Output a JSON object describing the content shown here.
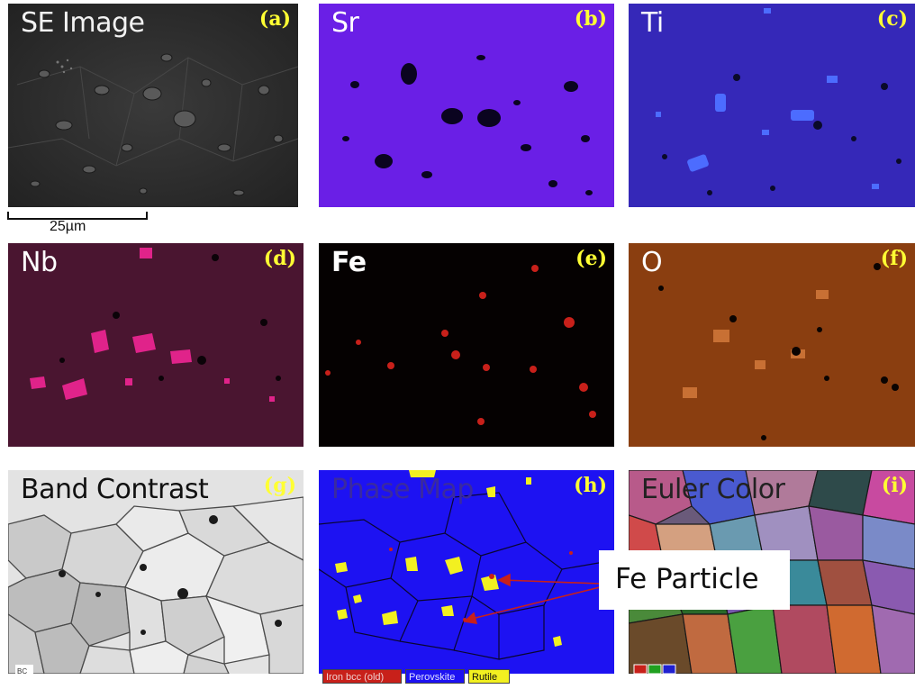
{
  "panels": {
    "a": {
      "title": "SE Image",
      "label": "(a)"
    },
    "b": {
      "title": "Sr",
      "label": "(b)"
    },
    "c": {
      "title": "Ti",
      "label": "(c)"
    },
    "d": {
      "title": "Nb",
      "label": "(d)"
    },
    "e": {
      "title": "Fe",
      "label": "(e)"
    },
    "f": {
      "title": "O",
      "label": "(f)"
    },
    "g": {
      "title": "Band Contrast",
      "label": "(g)",
      "corner": "BC"
    },
    "h": {
      "title": "Phase Map",
      "label": "(h)"
    },
    "i": {
      "title": "Euler Color",
      "label": "(i)"
    }
  },
  "scale_bar": "25µm",
  "callout": "Fe Particle",
  "legend": [
    "Iron bcc (old)",
    "Perovskite",
    "Rutile"
  ],
  "colors": {
    "sr_bg": "#6a1fe6",
    "ti_bg": "#3528b8",
    "nb_bg": "#4a1530",
    "fe_bg": "#050101",
    "o_bg": "#8a3e10",
    "phase_bg": "#1d12f2",
    "rutile": "#f2f020",
    "iron": "#c8201a",
    "label_yellow": "#ffff33"
  }
}
